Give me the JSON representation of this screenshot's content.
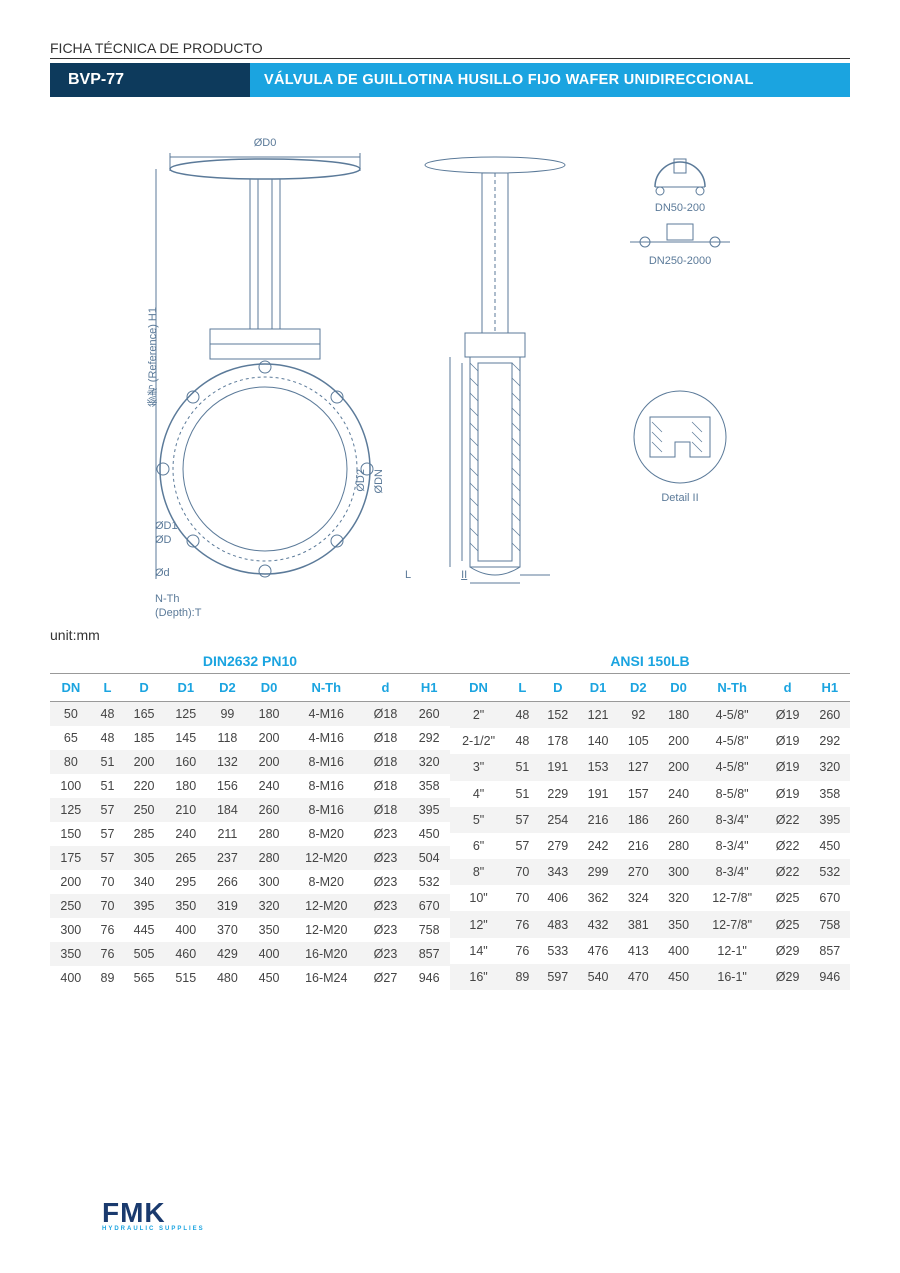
{
  "header": {
    "subtitle": "FICHA TÉCNICA DE PRODUCTO",
    "code": "BVP-77",
    "description": "VÁLVULA DE GUILLOTINA HUSILLO FIJO WAFER UNIDIRECCIONAL"
  },
  "diagram": {
    "labels": {
      "top_dim": "ØD0",
      "left_vert": "参考 (Reference) H1",
      "od1": "ØD1",
      "od": "ØD",
      "od_small": "Ød",
      "nth": "N-Th",
      "depth": "(Depth):T",
      "od2": "ØD2",
      "odn": "ØDN",
      "l": "L",
      "ii": "II",
      "dn50": "DN50-200",
      "dn250": "DN250-2000",
      "detail": "Detail II"
    }
  },
  "unit_label": "unit:mm",
  "tables": {
    "left": {
      "group": "DIN2632 PN10",
      "columns": [
        "DN",
        "L",
        "D",
        "D1",
        "D2",
        "D0",
        "N-Th",
        "d",
        "H1"
      ],
      "rows": [
        [
          "50",
          "48",
          "165",
          "125",
          "99",
          "180",
          "4-M16",
          "Ø18",
          "260"
        ],
        [
          "65",
          "48",
          "185",
          "145",
          "118",
          "200",
          "4-M16",
          "Ø18",
          "292"
        ],
        [
          "80",
          "51",
          "200",
          "160",
          "132",
          "200",
          "8-M16",
          "Ø18",
          "320"
        ],
        [
          "100",
          "51",
          "220",
          "180",
          "156",
          "240",
          "8-M16",
          "Ø18",
          "358"
        ],
        [
          "125",
          "57",
          "250",
          "210",
          "184",
          "260",
          "8-M16",
          "Ø18",
          "395"
        ],
        [
          "150",
          "57",
          "285",
          "240",
          "211",
          "280",
          "8-M20",
          "Ø23",
          "450"
        ],
        [
          "175",
          "57",
          "305",
          "265",
          "237",
          "280",
          "12-M20",
          "Ø23",
          "504"
        ],
        [
          "200",
          "70",
          "340",
          "295",
          "266",
          "300",
          "8-M20",
          "Ø23",
          "532"
        ],
        [
          "250",
          "70",
          "395",
          "350",
          "319",
          "320",
          "12-M20",
          "Ø23",
          "670"
        ],
        [
          "300",
          "76",
          "445",
          "400",
          "370",
          "350",
          "12-M20",
          "Ø23",
          "758"
        ],
        [
          "350",
          "76",
          "505",
          "460",
          "429",
          "400",
          "16-M20",
          "Ø23",
          "857"
        ],
        [
          "400",
          "89",
          "565",
          "515",
          "480",
          "450",
          "16-M24",
          "Ø27",
          "946"
        ]
      ]
    },
    "right": {
      "group": "ANSI 150LB",
      "columns": [
        "DN",
        "L",
        "D",
        "D1",
        "D2",
        "D0",
        "N-Th",
        "d",
        "H1"
      ],
      "rows": [
        [
          "2\"",
          "48",
          "152",
          "121",
          "92",
          "180",
          "4-5/8\"",
          "Ø19",
          "260"
        ],
        [
          "2-1/2\"",
          "48",
          "178",
          "140",
          "105",
          "200",
          "4-5/8\"",
          "Ø19",
          "292"
        ],
        [
          "3\"",
          "51",
          "191",
          "153",
          "127",
          "200",
          "4-5/8\"",
          "Ø19",
          "320"
        ],
        [
          "4\"",
          "51",
          "229",
          "191",
          "157",
          "240",
          "8-5/8\"",
          "Ø19",
          "358"
        ],
        [
          "5\"",
          "57",
          "254",
          "216",
          "186",
          "260",
          "8-3/4\"",
          "Ø22",
          "395"
        ],
        [
          "6\"",
          "57",
          "279",
          "242",
          "216",
          "280",
          "8-3/4\"",
          "Ø22",
          "450"
        ],
        [
          "8\"",
          "70",
          "343",
          "299",
          "270",
          "300",
          "8-3/4\"",
          "Ø22",
          "532"
        ],
        [
          "10\"",
          "70",
          "406",
          "362",
          "324",
          "320",
          "12-7/8\"",
          "Ø25",
          "670"
        ],
        [
          "12\"",
          "76",
          "483",
          "432",
          "381",
          "350",
          "12-7/8\"",
          "Ø25",
          "758"
        ],
        [
          "14\"",
          "76",
          "533",
          "476",
          "413",
          "400",
          "12-1\"",
          "Ø29",
          "857"
        ],
        [
          "16\"",
          "89",
          "597",
          "540",
          "470",
          "450",
          "16-1\"",
          "Ø29",
          "946"
        ]
      ]
    }
  },
  "logo": {
    "text": "FMK",
    "tagline": "HYDRAULIC SUPPLIES",
    "colors": {
      "dark": "#1a3a6e",
      "light": "#1ba4e0",
      "purple": "#6a3a9e"
    }
  },
  "colors": {
    "titlebar_dark": "#0d3a5c",
    "titlebar_light": "#1ba4e0",
    "header_text": "#1ba4e0",
    "row_alt": "#f3f3f3",
    "diagram_stroke": "#5b7a99"
  }
}
